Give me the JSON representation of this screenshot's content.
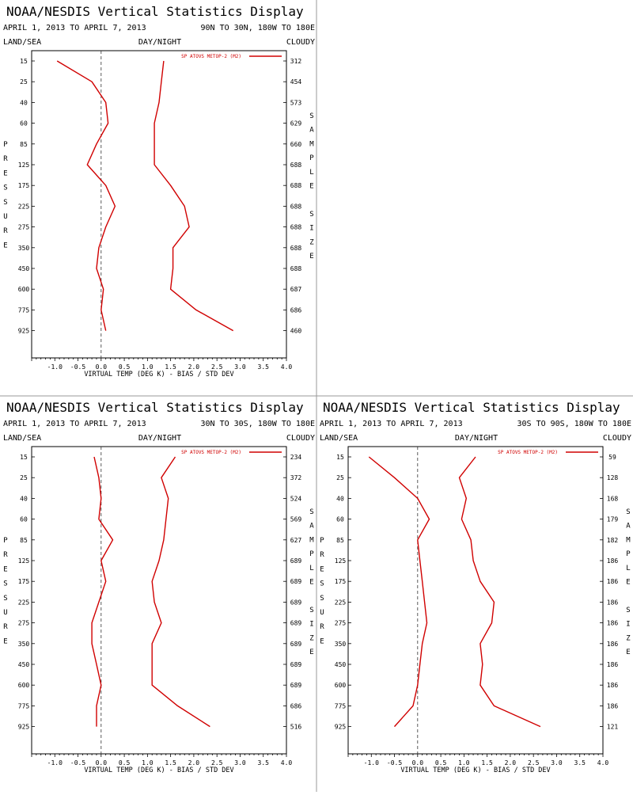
{
  "chart_data": [
    {
      "type": "line",
      "title": "NOAA/NESDIS Vertical Statistics Display",
      "date_range": "APRIL 1, 2013 TO APRIL 7, 2013",
      "region": "90N TO 30N, 180W TO 180E",
      "header_left": "LAND/SEA",
      "header_center": "DAY/NIGHT",
      "header_right": "CLOUDY",
      "ylabel": "PRESSURE",
      "xlabel": "VIRTUAL TEMP (DEG K) - BIAS / STD DEV",
      "right_label": "SAMPLE SIZE",
      "legend": "SP ATOVS METOP-2 (M2)",
      "xlim": [
        -1.5,
        4.0
      ],
      "x_ticks": [
        "-1.0",
        "-0.5",
        "0.0",
        "0.5",
        "1.0",
        "1.5",
        "2.0",
        "2.5",
        "3.0",
        "3.5",
        "4.0"
      ],
      "pressure_levels": [
        "15",
        "25",
        "40",
        "60",
        "85",
        "125",
        "175",
        "225",
        "275",
        "350",
        "450",
        "600",
        "775",
        "925"
      ],
      "sample_size": [
        "312",
        "454",
        "573",
        "629",
        "660",
        "688",
        "688",
        "688",
        "688",
        "688",
        "688",
        "687",
        "686",
        "460"
      ],
      "series": [
        {
          "name": "bias",
          "values": [
            -0.95,
            -0.2,
            0.1,
            0.15,
            -0.1,
            -0.3,
            0.1,
            0.3,
            0.1,
            -0.05,
            -0.1,
            0.05,
            0.0,
            0.1
          ]
        },
        {
          "name": "std_dev",
          "values": [
            1.35,
            1.3,
            1.25,
            1.15,
            1.15,
            1.15,
            1.5,
            1.8,
            1.9,
            1.55,
            1.55,
            1.5,
            2.05,
            2.85
          ]
        }
      ]
    },
    {
      "type": "line",
      "title": "NOAA/NESDIS Vertical Statistics Display",
      "date_range": "APRIL 1, 2013 TO APRIL 7, 2013",
      "region": "30N TO 30S, 180W TO 180E",
      "header_left": "LAND/SEA",
      "header_center": "DAY/NIGHT",
      "header_right": "CLOUDY",
      "ylabel": "PRESSURE",
      "xlabel": "VIRTUAL TEMP (DEG K) - BIAS / STD DEV",
      "right_label": "SAMPLE SIZE",
      "legend": "SP ATOVS METOP-2 (M2)",
      "xlim": [
        -1.5,
        4.0
      ],
      "x_ticks": [
        "-1.0",
        "-0.5",
        "0.0",
        "0.5",
        "1.0",
        "1.5",
        "2.0",
        "2.5",
        "3.0",
        "3.5",
        "4.0"
      ],
      "pressure_levels": [
        "15",
        "25",
        "40",
        "60",
        "85",
        "125",
        "175",
        "225",
        "275",
        "350",
        "450",
        "600",
        "775",
        "925"
      ],
      "sample_size": [
        "234",
        "372",
        "524",
        "569",
        "627",
        "689",
        "689",
        "689",
        "689",
        "689",
        "689",
        "689",
        "686",
        "516"
      ],
      "series": [
        {
          "name": "bias",
          "values": [
            -0.15,
            -0.05,
            0.0,
            -0.05,
            0.25,
            0.0,
            0.1,
            -0.05,
            -0.2,
            -0.2,
            -0.1,
            0.0,
            -0.1,
            -0.1
          ]
        },
        {
          "name": "std_dev",
          "values": [
            1.6,
            1.3,
            1.45,
            1.4,
            1.35,
            1.25,
            1.1,
            1.15,
            1.3,
            1.1,
            1.1,
            1.1,
            1.65,
            2.35
          ]
        }
      ]
    },
    {
      "type": "line",
      "title": "NOAA/NESDIS Vertical Statistics Display",
      "date_range": "APRIL 1, 2013 TO APRIL 7, 2013",
      "region": "30S TO 90S, 180W TO 180E",
      "header_left": "LAND/SEA",
      "header_center": "DAY/NIGHT",
      "header_right": "CLOUDY",
      "ylabel": "PRESSURE",
      "xlabel": "VIRTUAL TEMP (DEG K) - BIAS / STD DEV",
      "right_label": "SAMPLE SIZE",
      "legend": "SP ATOVS METOP-2 (M2)",
      "xlim": [
        -1.5,
        4.0
      ],
      "x_ticks": [
        "-1.0",
        "-0.5",
        "0.0",
        "0.5",
        "1.0",
        "1.5",
        "2.0",
        "2.5",
        "3.0",
        "3.5",
        "4.0"
      ],
      "pressure_levels": [
        "15",
        "25",
        "40",
        "60",
        "85",
        "125",
        "175",
        "225",
        "275",
        "350",
        "450",
        "600",
        "775",
        "925"
      ],
      "sample_size": [
        "59",
        "128",
        "168",
        "179",
        "182",
        "186",
        "186",
        "186",
        "186",
        "186",
        "186",
        "186",
        "186",
        "121"
      ],
      "series": [
        {
          "name": "bias",
          "values": [
            -1.05,
            -0.5,
            0.0,
            0.25,
            0.0,
            0.05,
            0.1,
            0.15,
            0.2,
            0.1,
            0.05,
            0.0,
            -0.1,
            -0.5
          ]
        },
        {
          "name": "std_dev",
          "values": [
            1.25,
            0.9,
            1.05,
            0.95,
            1.15,
            1.2,
            1.35,
            1.65,
            1.6,
            1.35,
            1.4,
            1.35,
            1.65,
            2.65
          ]
        }
      ]
    }
  ]
}
